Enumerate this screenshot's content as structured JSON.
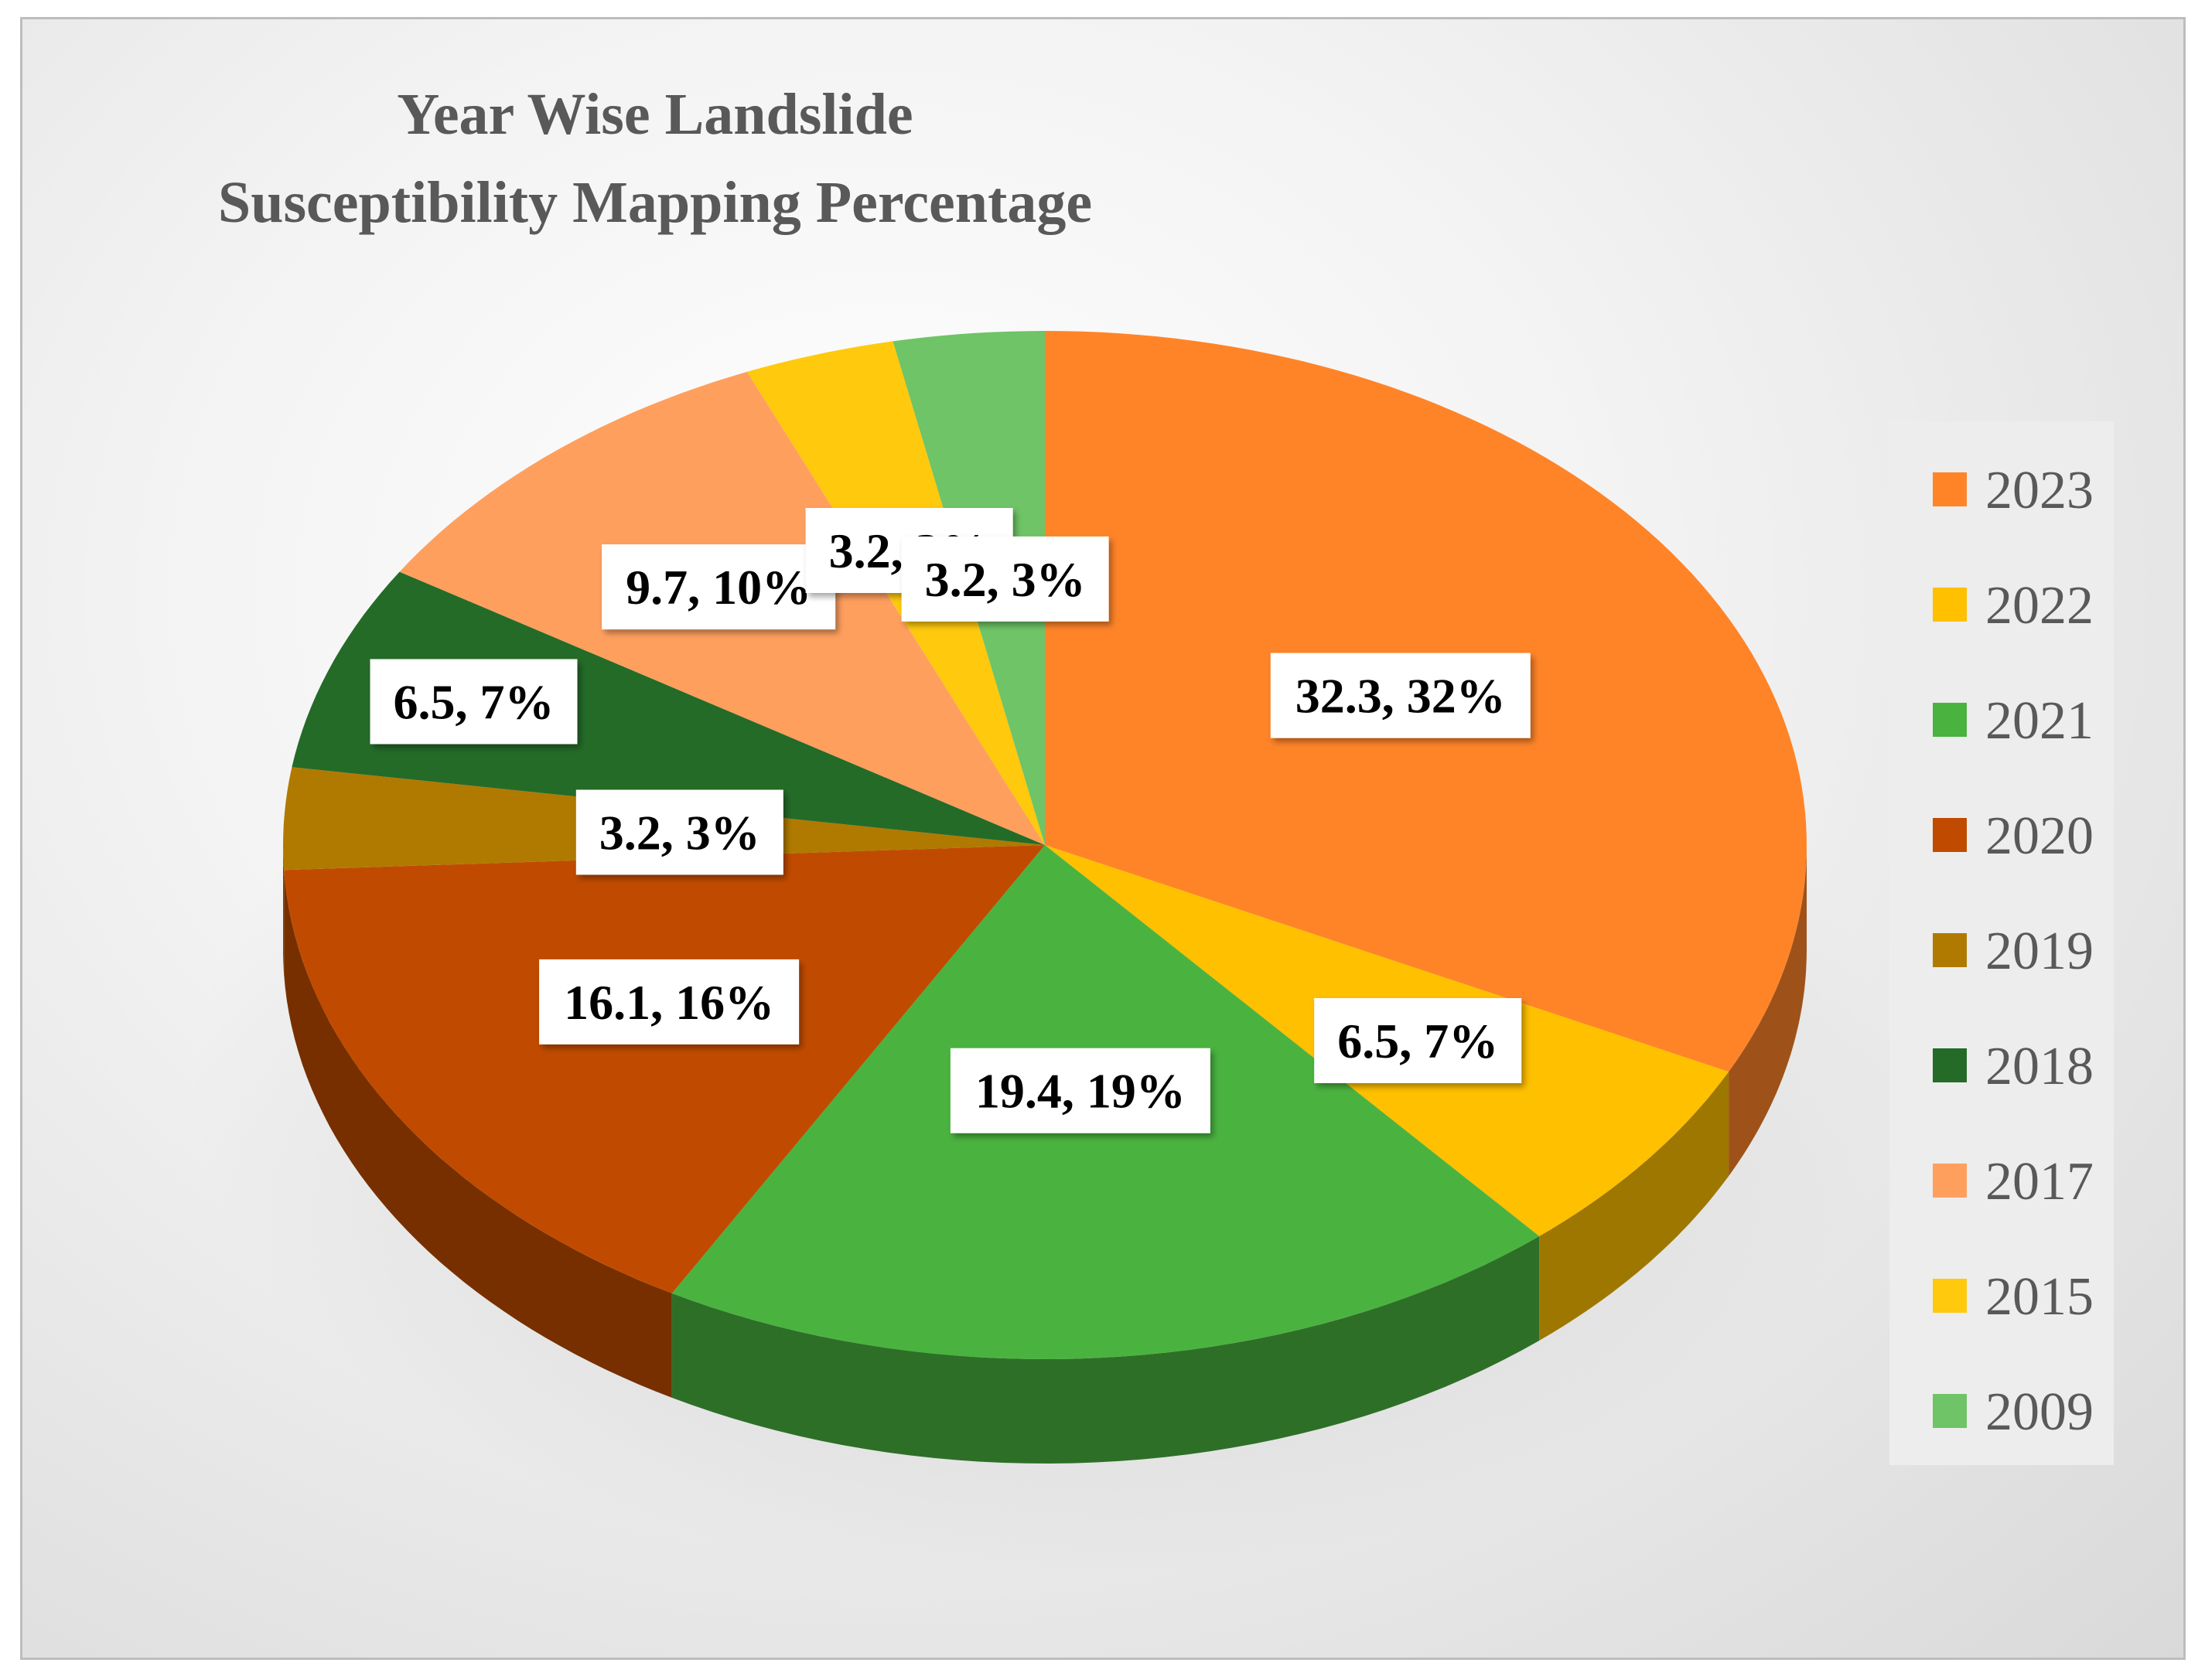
{
  "chart_data": {
    "type": "pie",
    "title_lines": [
      "Year Wise Landslide",
      "Susceptibility Mapping Percentage"
    ],
    "label_format": "value, percent",
    "legend_position": "right",
    "style": "3d",
    "slices": [
      {
        "label": "2023",
        "value": 32.3,
        "percent": "32%",
        "color": "#FF8428"
      },
      {
        "label": "2022",
        "value": 6.5,
        "percent": "7%",
        "color": "#FFC000"
      },
      {
        "label": "2021",
        "value": 19.4,
        "percent": "19%",
        "color": "#4AB340"
      },
      {
        "label": "2020",
        "value": 16.1,
        "percent": "16%",
        "color": "#C04B00"
      },
      {
        "label": "2019",
        "value": 3.2,
        "percent": "3%",
        "color": "#B07A00"
      },
      {
        "label": "2018",
        "value": 6.5,
        "percent": "7%",
        "color": "#246B28"
      },
      {
        "label": "2017",
        "value": 9.7,
        "percent": "10%",
        "color": "#FF9F5E"
      },
      {
        "label": "2015",
        "value": 3.2,
        "percent": "3%",
        "color": "#FFC90E"
      },
      {
        "label": "2009",
        "value": 3.2,
        "percent": "3%",
        "color": "#6EC466"
      }
    ]
  }
}
